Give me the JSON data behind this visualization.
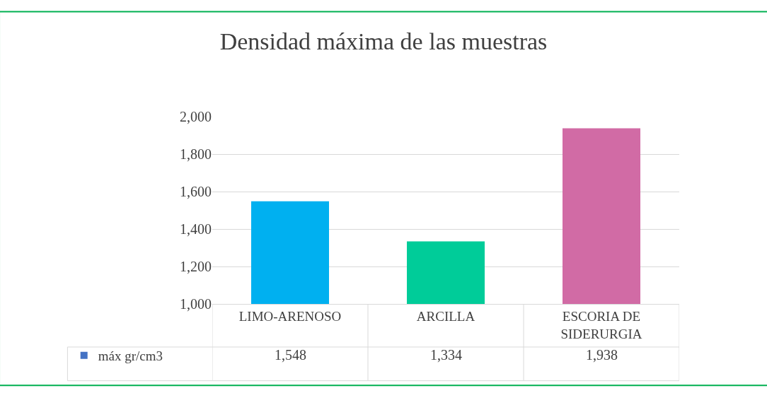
{
  "chart_data": {
    "type": "bar",
    "title": "Densidad máxima de las muestras",
    "categories": [
      "LIMO-ARENOSO",
      "ARCILLA",
      "ESCORIA DE SIDERURGIA"
    ],
    "series": [
      {
        "name": "máx gr/cm3",
        "color": "#4472c4",
        "colors": [
          "#00b0f0",
          "#00cc99",
          "#d16ba5"
        ],
        "values": [
          1548,
          1334,
          1938
        ],
        "value_labels": [
          "1,548",
          "1,334",
          "1,938"
        ]
      }
    ],
    "ylim": [
      1000,
      2000
    ],
    "yticks": [
      {
        "value": 1000,
        "label": "1,000"
      },
      {
        "value": 1200,
        "label": "1,200"
      },
      {
        "value": 1400,
        "label": "1,400"
      },
      {
        "value": 1600,
        "label": "1,600"
      },
      {
        "value": 1800,
        "label": "1,800"
      },
      {
        "value": 2000,
        "label": "2,000"
      }
    ],
    "grid": "y",
    "legend": "bottom"
  }
}
